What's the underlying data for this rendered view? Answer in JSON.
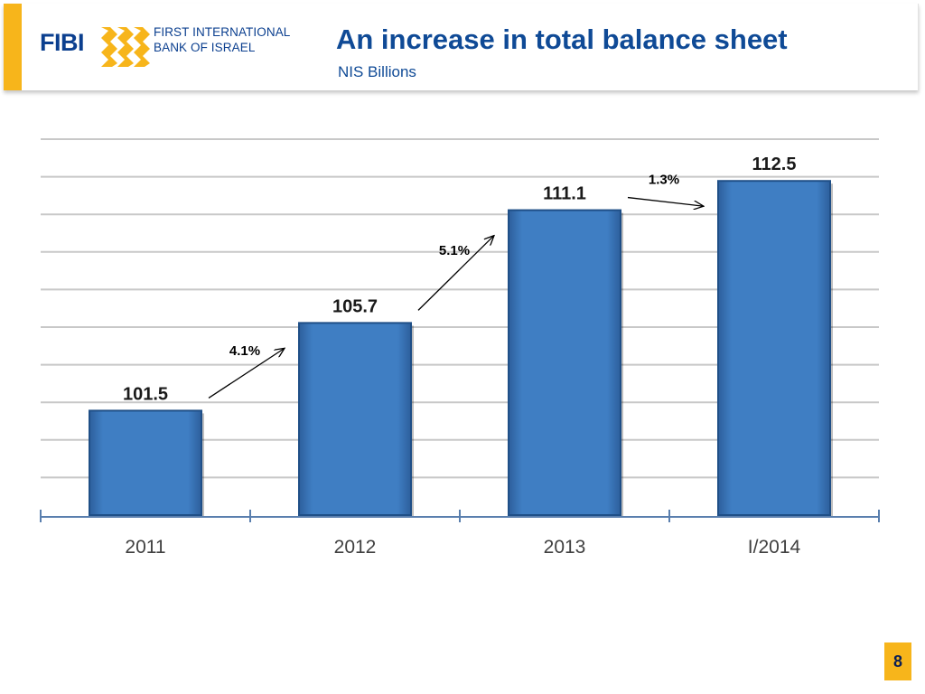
{
  "header": {
    "logo_wordmark": "FIBI",
    "logo_line1": "FIRST INTERNATIONAL",
    "logo_line2": "BANK OF ISRAEL",
    "title": "An increase in total balance sheet",
    "subtitle": "NIS Billions"
  },
  "colors": {
    "accent": "#f7b51b",
    "brand_blue": "#0b3f8f",
    "bar_fill": "#3d7cc0",
    "bar_edge": "#1f4f87"
  },
  "chart_data": {
    "type": "bar",
    "categories": [
      "2011",
      "2012",
      "2013",
      "I/2014"
    ],
    "values": [
      101.5,
      105.7,
      111.1,
      112.5
    ],
    "value_labels": [
      "101.5",
      "105.7",
      "111.1",
      "112.5"
    ],
    "growth_labels": [
      "4.1%",
      "5.1%",
      "1.3%"
    ],
    "ylim": [
      96.5,
      114.5
    ],
    "grid": true,
    "legend": "none"
  },
  "footer": {
    "page_number": "8"
  }
}
